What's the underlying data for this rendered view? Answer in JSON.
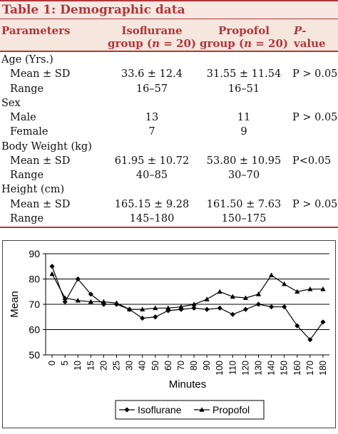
{
  "table": {
    "title": "Table 1: Demographic data",
    "headers": {
      "param": "Parameters",
      "iso_line1": "Isoflurane",
      "iso_line2_prefix": "group (",
      "iso_n": "n",
      "iso_line2_suffix": " = 20)",
      "pro_line1": "Propofol",
      "pro_line2_prefix": "group (",
      "pro_n": "n",
      "pro_line2_suffix": " = 20)",
      "p_italic": "P",
      "p_rest": "-value"
    },
    "rows": [
      {
        "label": "Age (Yrs.)"
      },
      {
        "sub": "Mean ± SD",
        "iso": "33.6 ± 12.4",
        "pro": "31.55 ± 11.54",
        "p": "P > 0.05"
      },
      {
        "sub": "Range",
        "iso": "16–57",
        "pro": "16–51",
        "p": ""
      },
      {
        "label": "Sex"
      },
      {
        "sub": "Male",
        "iso": "13",
        "pro": "11",
        "p": "P > 0.05"
      },
      {
        "sub": "Female",
        "iso": "7",
        "pro": "9",
        "p": ""
      },
      {
        "label": "Body Weight (kg)"
      },
      {
        "sub": "Mean ± SD",
        "iso": "61.95 ± 10.72",
        "pro": "53.80 ± 10.95",
        "p": "P<0.05"
      },
      {
        "sub": "Range",
        "iso": "40–85",
        "pro": "30–70",
        "p": ""
      },
      {
        "label": "Height (cm)"
      },
      {
        "sub": "Mean ± SD",
        "iso": "165.15 ± 9.28",
        "pro": "161.50 ± 7.63",
        "p": "P > 0.05"
      },
      {
        "sub": "Range",
        "iso": "145–180",
        "pro": "150–175",
        "p": ""
      }
    ]
  },
  "chart_data": {
    "type": "line",
    "title": "",
    "xlabel": "Minutes",
    "ylabel": "Mean",
    "ylim": [
      50,
      90
    ],
    "yticks": [
      50,
      60,
      70,
      80,
      90
    ],
    "grid": "horizontal",
    "legend": "bottom-right",
    "categories": [
      "0",
      "5",
      "10",
      "15",
      "20",
      "25",
      "30",
      "40",
      "50",
      "60",
      "70",
      "80",
      "90",
      "100",
      "110",
      "120",
      "130",
      "140",
      "150",
      "160",
      "170",
      "180"
    ],
    "series": [
      {
        "name": "Isoflurane",
        "marker": "diamond",
        "values": [
          85,
          71,
          80,
          74,
          70,
          70,
          68,
          64.5,
          65,
          67.5,
          68,
          68.5,
          68,
          68.5,
          66,
          68,
          70,
          69,
          69,
          61.5,
          56,
          63
        ]
      },
      {
        "name": "Propofol",
        "marker": "triangle",
        "values": [
          82,
          72.5,
          71.5,
          71,
          71,
          70.5,
          68,
          68,
          68.5,
          68.5,
          69,
          70,
          72,
          75,
          73,
          72.5,
          74,
          81.5,
          78,
          75,
          76,
          76
        ]
      }
    ],
    "colors": {
      "line": "#000000",
      "grid": "#000000"
    }
  }
}
